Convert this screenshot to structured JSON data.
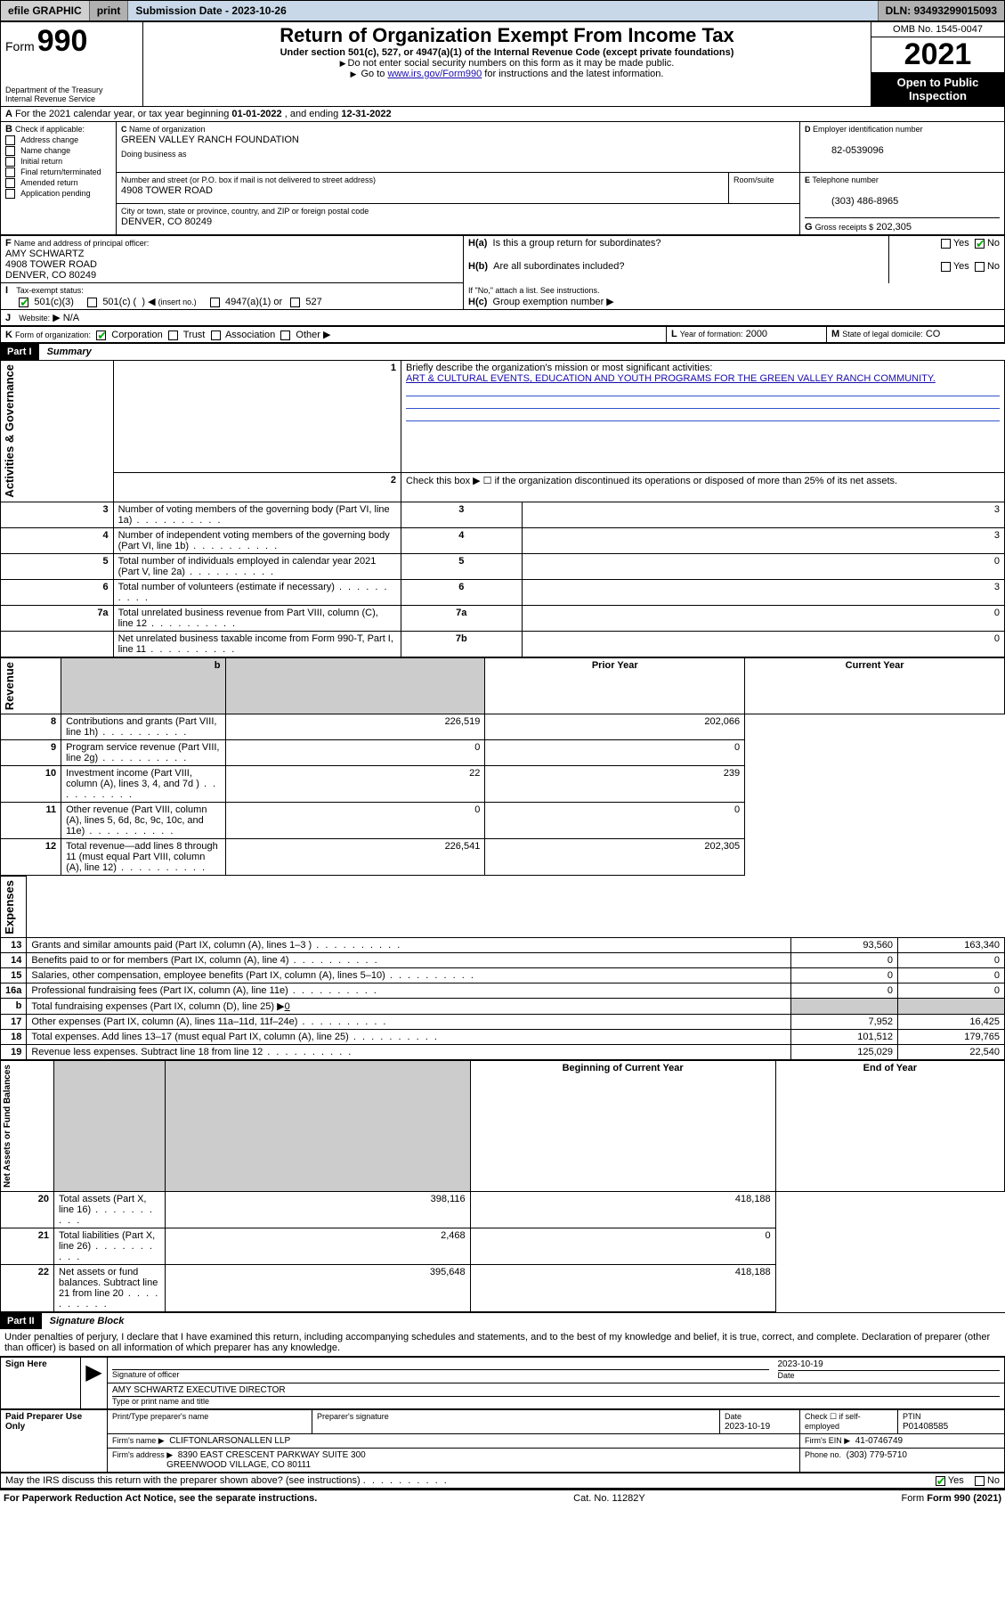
{
  "topbar": {
    "efile": "efile GRAPHIC",
    "print": "print",
    "subdate_label": "Submission Date - ",
    "subdate": "2023-10-26",
    "dln_label": "DLN: ",
    "dln": "93493299015093"
  },
  "header": {
    "form_word": "Form",
    "form_no": "990",
    "dept": "Department of the Treasury",
    "irs": "Internal Revenue Service",
    "title": "Return of Organization Exempt From Income Tax",
    "subtitle": "Under section 501(c), 527, or 4947(a)(1) of the Internal Revenue Code (except private foundations)",
    "note1": "Do not enter social security numbers on this form as it may be made public.",
    "note2_pre": "Go to ",
    "note2_link": "www.irs.gov/Form990",
    "note2_post": " for instructions and the latest information.",
    "omb": "OMB No. 1545-0047",
    "year": "2021",
    "openpub1": "Open to Public",
    "openpub2": "Inspection"
  },
  "A": {
    "text_pre": "For the 2021 calendar year, or tax year beginning ",
    "begin": "01-01-2022",
    "mid": " , and ending ",
    "end": "12-31-2022"
  },
  "B": {
    "label": "Check if applicable:",
    "opts": [
      "Address change",
      "Name change",
      "Initial return",
      "Final return/terminated",
      "Amended return",
      "Application pending"
    ]
  },
  "C": {
    "name_label": "Name of organization",
    "name": "GREEN VALLEY RANCH FOUNDATION",
    "dba_label": "Doing business as",
    "dba": "",
    "street_label": "Number and street (or P.O. box if mail is not delivered to street address)",
    "room_label": "Room/suite",
    "street": "4908 TOWER ROAD",
    "city_label": "City or town, state or province, country, and ZIP or foreign postal code",
    "city": "DENVER, CO  80249"
  },
  "D": {
    "label": "Employer identification number",
    "val": "82-0539096"
  },
  "E": {
    "label": "Telephone number",
    "val": "(303) 486-8965"
  },
  "G": {
    "label": "Gross receipts $",
    "val": "202,305"
  },
  "F": {
    "label": "Name and address of principal officer:",
    "name": "AMY SCHWARTZ",
    "street": "4908 TOWER ROAD",
    "city": "DENVER, CO  80249"
  },
  "H": {
    "a": "Is this a group return for subordinates?",
    "b": "Are all subordinates included?",
    "bnote": "If \"No,\" attach a list. See instructions.",
    "c": "Group exemption number",
    "yes": "Yes",
    "no": "No"
  },
  "I": {
    "label": "Tax-exempt status:",
    "o1": "501(c)(3)",
    "o2a": "501(c) (",
    "o2b": ")",
    "o2c": "(insert no.)",
    "o3": "4947(a)(1) or",
    "o4": "527"
  },
  "J": {
    "label": "Website:",
    "val": "N/A"
  },
  "K": {
    "label": "Form of organization:",
    "o": [
      "Corporation",
      "Trust",
      "Association",
      "Other"
    ]
  },
  "L": {
    "label": "Year of formation:",
    "val": "2000"
  },
  "M": {
    "label": "State of legal domicile:",
    "val": "CO"
  },
  "part1": {
    "header": "Part I",
    "title": "Summary",
    "l1_label": "Briefly describe the organization's mission or most significant activities:",
    "l1_val": "ART & CULTURAL EVENTS, EDUCATION AND YOUTH PROGRAMS FOR THE GREEN VALLEY RANCH COMMUNITY.",
    "l2": "Check this box ▶ ☐  if the organization discontinued its operations or disposed of more than 25% of its net assets.",
    "rows_gov": [
      {
        "n": "3",
        "d": "Number of voting members of the governing body (Part VI, line 1a)",
        "c": "3",
        "v": "3"
      },
      {
        "n": "4",
        "d": "Number of independent voting members of the governing body (Part VI, line 1b)",
        "c": "4",
        "v": "3"
      },
      {
        "n": "5",
        "d": "Total number of individuals employed in calendar year 2021 (Part V, line 2a)",
        "c": "5",
        "v": "0"
      },
      {
        "n": "6",
        "d": "Total number of volunteers (estimate if necessary)",
        "c": "6",
        "v": "3"
      },
      {
        "n": "7a",
        "d": "Total unrelated business revenue from Part VIII, column (C), line 12",
        "c": "7a",
        "v": "0"
      },
      {
        "n": "",
        "d": "Net unrelated business taxable income from Form 990-T, Part I, line 11",
        "c": "7b",
        "v": "0"
      }
    ],
    "col_py": "Prior Year",
    "col_cy": "Current Year",
    "rows_rev": [
      {
        "n": "8",
        "d": "Contributions and grants (Part VIII, line 1h)",
        "py": "226,519",
        "cy": "202,066"
      },
      {
        "n": "9",
        "d": "Program service revenue (Part VIII, line 2g)",
        "py": "0",
        "cy": "0"
      },
      {
        "n": "10",
        "d": "Investment income (Part VIII, column (A), lines 3, 4, and 7d )",
        "py": "22",
        "cy": "239"
      },
      {
        "n": "11",
        "d": "Other revenue (Part VIII, column (A), lines 5, 6d, 8c, 9c, 10c, and 11e)",
        "py": "0",
        "cy": "0"
      },
      {
        "n": "12",
        "d": "Total revenue—add lines 8 through 11 (must equal Part VIII, column (A), line 12)",
        "py": "226,541",
        "cy": "202,305"
      }
    ],
    "rows_exp": [
      {
        "n": "13",
        "d": "Grants and similar amounts paid (Part IX, column (A), lines 1–3 )",
        "py": "93,560",
        "cy": "163,340"
      },
      {
        "n": "14",
        "d": "Benefits paid to or for members (Part IX, column (A), line 4)",
        "py": "0",
        "cy": "0"
      },
      {
        "n": "15",
        "d": "Salaries, other compensation, employee benefits (Part IX, column (A), lines 5–10)",
        "py": "0",
        "cy": "0"
      },
      {
        "n": "16a",
        "d": "Professional fundraising fees (Part IX, column (A), line 11e)",
        "py": "0",
        "cy": "0"
      },
      {
        "n": "b",
        "d": "Total fundraising expenses (Part IX, column (D), line 25) ▶",
        "py": "grey",
        "cy": "grey",
        "extra": "0"
      },
      {
        "n": "17",
        "d": "Other expenses (Part IX, column (A), lines 11a–11d, 11f–24e)",
        "py": "7,952",
        "cy": "16,425"
      },
      {
        "n": "18",
        "d": "Total expenses. Add lines 13–17 (must equal Part IX, column (A), line 25)",
        "py": "101,512",
        "cy": "179,765"
      },
      {
        "n": "19",
        "d": "Revenue less expenses. Subtract line 18 from line 12",
        "py": "125,029",
        "cy": "22,540"
      }
    ],
    "col_boy": "Beginning of Current Year",
    "col_eoy": "End of Year",
    "rows_na": [
      {
        "n": "20",
        "d": "Total assets (Part X, line 16)",
        "py": "398,116",
        "cy": "418,188"
      },
      {
        "n": "21",
        "d": "Total liabilities (Part X, line 26)",
        "py": "2,468",
        "cy": "0"
      },
      {
        "n": "22",
        "d": "Net assets or fund balances. Subtract line 21 from line 20",
        "py": "395,648",
        "cy": "418,188"
      }
    ],
    "side_gov": "Activities & Governance",
    "side_rev": "Revenue",
    "side_exp": "Expenses",
    "side_na": "Net Assets or Fund Balances"
  },
  "part2": {
    "header": "Part II",
    "title": "Signature Block",
    "jurat": "Under penalties of perjury, I declare that I have examined this return, including accompanying schedules and statements, and to the best of my knowledge and belief, it is true, correct, and complete. Declaration of preparer (other than officer) is based on all information of which preparer has any knowledge.",
    "sign_here": "Sign Here",
    "sig_officer": "Signature of officer",
    "sig_date": "Date",
    "sig_date_val": "2023-10-19",
    "officer_name": "AMY SCHWARTZ  EXECUTIVE DIRECTOR",
    "officer_label": "Type or print name and title",
    "paid": "Paid Preparer Use Only",
    "pp_name_label": "Print/Type preparer's name",
    "pp_sig_label": "Preparer's signature",
    "pp_date_label": "Date",
    "pp_date": "2023-10-19",
    "pp_check_label": "Check ☐ if self-employed",
    "pp_ptin_label": "PTIN",
    "pp_ptin": "P01408585",
    "firm_name_label": "Firm's name    ▶",
    "firm_name": "CLIFTONLARSONALLEN LLP",
    "firm_ein_label": "Firm's EIN ▶",
    "firm_ein": "41-0746749",
    "firm_addr_label": "Firm's address ▶",
    "firm_addr1": "8390 EAST CRESCENT PARKWAY SUITE 300",
    "firm_addr2": "GREENWOOD VILLAGE, CO  80111",
    "firm_phone_label": "Phone no.",
    "firm_phone": "(303) 779-5710",
    "discuss": "May the IRS discuss this return with the preparer shown above? (see instructions)"
  },
  "footer": {
    "pra": "For Paperwork Reduction Act Notice, see the separate instructions.",
    "cat": "Cat. No. 11282Y",
    "form": "Form 990 (2021)"
  }
}
